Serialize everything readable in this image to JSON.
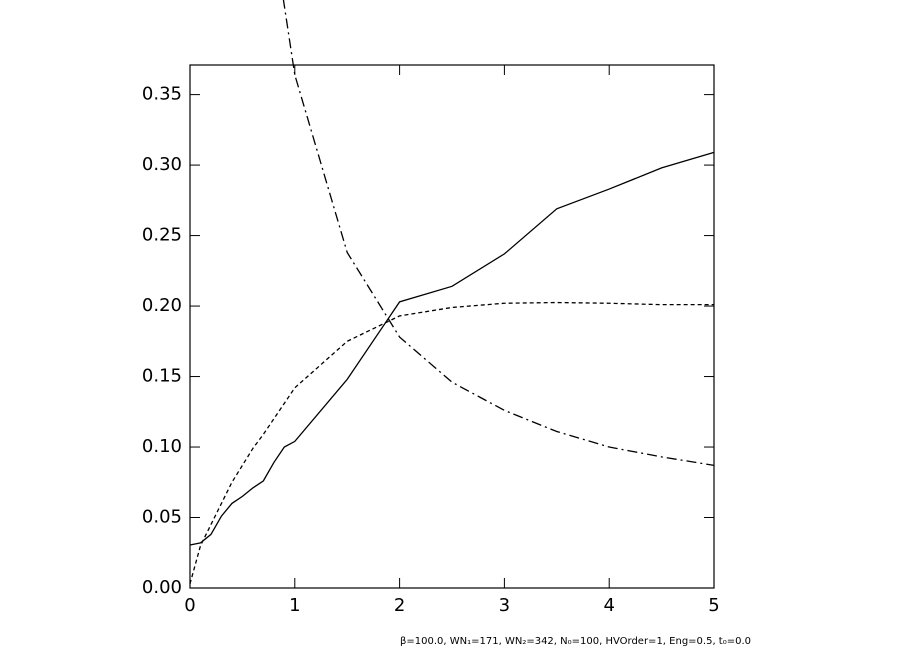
{
  "chart_data": {
    "type": "line",
    "annotation": "β=100.0, WN₁=171, WN₂=342, N₀=100, HVOrder=1, Eng=0.5, t₀=0.0",
    "xlim": [
      0,
      5
    ],
    "ylim": [
      0,
      0.371
    ],
    "xticks": [
      0,
      1,
      2,
      3,
      4,
      5
    ],
    "yticks": [
      {
        "value": 0,
        "label": "0.00"
      },
      {
        "value": 0.05,
        "label": "0.05"
      },
      {
        "value": 0.1,
        "label": "0.10"
      },
      {
        "value": 0.15,
        "label": "0.15"
      },
      {
        "value": 0.2,
        "label": "0.20"
      },
      {
        "value": 0.25,
        "label": "0.25"
      },
      {
        "value": 0.3,
        "label": "0.30"
      },
      {
        "value": 0.35,
        "label": "0.35"
      }
    ],
    "series": [
      {
        "color": "#000000",
        "linestyle": "solid",
        "x": [
          0,
          0.1,
          0.2,
          0.3,
          0.4,
          0.5,
          0.6,
          0.7,
          0.8,
          0.9,
          1,
          1.5,
          2,
          2.5,
          3,
          3.5,
          4,
          4.5,
          5
        ],
        "values": [
          0.0305,
          0.032,
          0.038,
          0.051,
          0.06,
          0.065,
          0.071,
          0.076,
          0.089,
          0.1,
          0.104,
          0.148,
          0.203,
          0.214,
          0.237,
          0.269,
          0.283,
          0.298,
          0.309
        ]
      },
      {
        "color": "#000000",
        "linestyle": "dashed",
        "x": [
          0,
          0.1,
          0.2,
          0.3,
          0.4,
          0.5,
          0.6,
          0.7,
          0.8,
          0.9,
          1,
          1.5,
          2,
          2.5,
          3,
          3.5,
          4,
          4.5,
          5
        ],
        "values": [
          0.003,
          0.03,
          0.045,
          0.06,
          0.075,
          0.087,
          0.099,
          0.109,
          0.12,
          0.131,
          0.142,
          0.175,
          0.193,
          0.199,
          0.202,
          0.2025,
          0.202,
          0.201,
          0.201
        ]
      },
      {
        "color": "#000000",
        "linestyle": "dashdot",
        "x": [
          0.89,
          1,
          1.5,
          2,
          2.5,
          3,
          3.5,
          4,
          4.5,
          5
        ],
        "values": [
          0.418,
          0.364,
          0.238,
          0.178,
          0.146,
          0.126,
          0.111,
          0.1,
          0.093,
          0.087
        ]
      }
    ]
  }
}
